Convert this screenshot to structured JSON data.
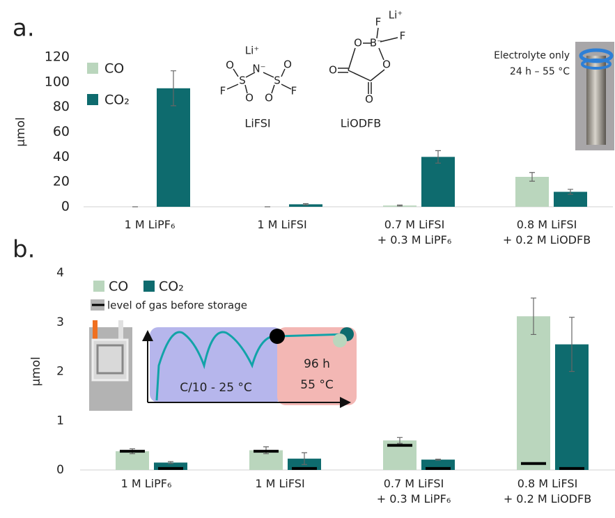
{
  "chart_data": [
    {
      "type": "bar",
      "panel_label": "a.",
      "ylabel": "µmol",
      "categories": [
        "1 M LiPF₆",
        "1 M LiFSI",
        "0.7 M LiFSI\n+ 0.3 M LiPF₆",
        "0.8 M LiFSI\n+ 0.2 M LiODFB"
      ],
      "series": [
        {
          "name": "CO",
          "color": "#bad6bd",
          "values": [
            0,
            0,
            1,
            24
          ],
          "errors": [
            0,
            0,
            0.4,
            3.5
          ]
        },
        {
          "name": "CO₂",
          "color": "#0e6b6e",
          "values": [
            95,
            2,
            40,
            12
          ],
          "errors": [
            14,
            0.5,
            5,
            2
          ]
        }
      ],
      "ylim": [
        0,
        120
      ],
      "yticks": [
        0,
        20,
        40,
        60,
        80,
        100,
        120
      ],
      "structures": [
        {
          "name": "LiFSI",
          "atoms": [
            "Li⁺",
            "N⁻",
            "S",
            "S",
            "O",
            "O",
            "O",
            "O",
            "F",
            "F"
          ]
        },
        {
          "name": "LiODFB",
          "atoms": [
            "F",
            "Li⁺",
            "B⁻",
            "F",
            "O",
            "O",
            "O",
            "O"
          ]
        }
      ],
      "photo_caption": [
        "Electrolyte only",
        "24 h – 55 °C"
      ]
    },
    {
      "type": "bar",
      "panel_label": "b.",
      "ylabel": "µmol",
      "categories": [
        "1 M LiPF₆",
        "1 M LiFSI",
        "0.7 M LiFSI\n+ 0.3 M LiPF₆",
        "0.8 M LiFSI\n+ 0.2 M LiODFB"
      ],
      "series": [
        {
          "name": "CO",
          "color": "#bad6bd",
          "values": [
            0.38,
            0.4,
            0.6,
            3.12
          ],
          "errors": [
            0.05,
            0.07,
            0.06,
            0.37
          ],
          "baseline_values": [
            0.38,
            0.38,
            0.5,
            0.13
          ]
        },
        {
          "name": "CO₂",
          "color": "#0e6b6e",
          "values": [
            0.15,
            0.23,
            0.21,
            2.55
          ],
          "errors": [
            0.02,
            0.12,
            0.01,
            0.55
          ],
          "baseline_values": [
            0.03,
            0.03,
            0.03,
            0.03
          ]
        }
      ],
      "baseline_name": "level of gas before storage",
      "baseline_color": "#000000",
      "ylim": [
        0,
        4
      ],
      "yticks": [
        0,
        1,
        2,
        3,
        4
      ],
      "inset_labels": [
        "C/10 - 25 °C",
        "96 h",
        "55 °C"
      ]
    }
  ]
}
